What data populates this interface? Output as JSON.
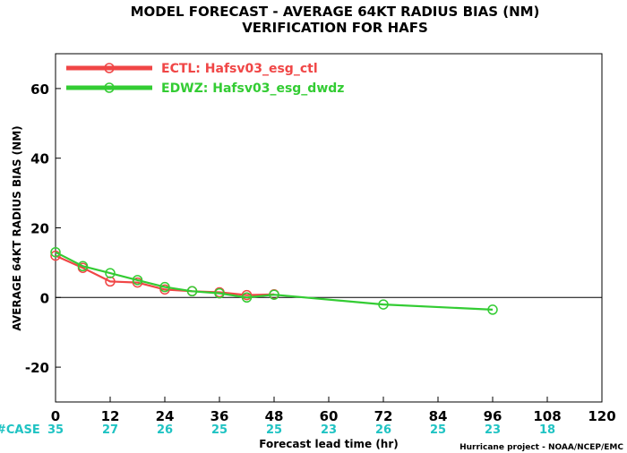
{
  "chart_data": {
    "type": "line",
    "title": "MODEL FORECAST - AVERAGE 64KT RADIUS BIAS (NM)",
    "subtitle": "VERIFICATION FOR HAFS",
    "xlabel": "Forecast lead time (hr)",
    "ylabel": "AVERAGE 64KT RADIUS BIAS (NM)",
    "xlim": [
      0,
      120
    ],
    "ylim": [
      -30,
      70
    ],
    "x_ticks": [
      0,
      12,
      24,
      36,
      48,
      60,
      72,
      84,
      96,
      108,
      120
    ],
    "y_ticks": [
      -20,
      0,
      20,
      40,
      60
    ],
    "zero_line": true,
    "legend_position": "top-left",
    "case_label": "#CASE",
    "case_counts": [
      "35",
      "27",
      "26",
      "25",
      "25",
      "23",
      "26",
      "25",
      "23",
      "18"
    ],
    "series": [
      {
        "name": "ECTL: Hafsv03_esg_ctl",
        "color": "#f04646",
        "x": [
          0,
          6,
          12,
          18,
          24,
          30,
          36,
          42,
          48
        ],
        "y": [
          12,
          8.5,
          4.6,
          4.3,
          2.3,
          1.8,
          1.5,
          0.7,
          0.9
        ]
      },
      {
        "name": "EDWZ: Hafsv03_esg_dwdz",
        "color": "#33cc33",
        "x": [
          0,
          6,
          12,
          18,
          24,
          30,
          36,
          42,
          48,
          72,
          96
        ],
        "y": [
          13,
          9,
          7,
          5,
          3,
          1.8,
          1.2,
          0,
          0.8,
          -2,
          -3.5
        ]
      }
    ],
    "credit": "Hurricane project - NOAA/NCEP/EMC"
  }
}
